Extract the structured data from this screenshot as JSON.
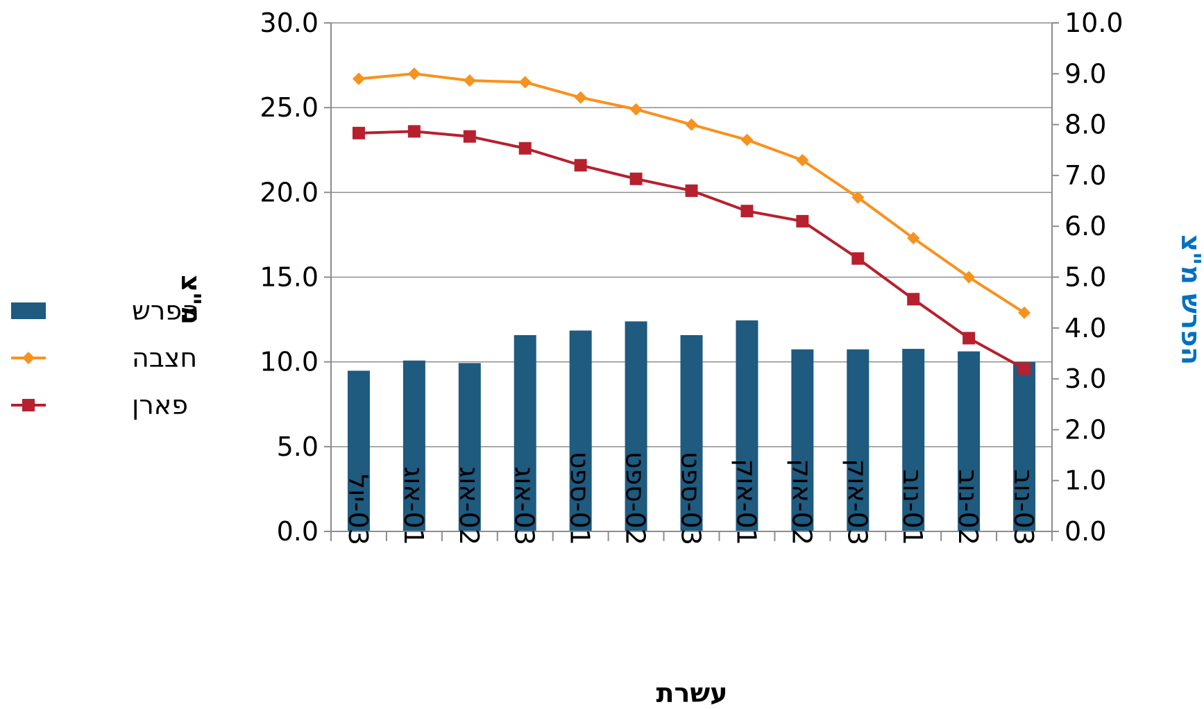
{
  "chart_data": {
    "type": "bar",
    "categories": [
      "03-יול",
      "01-אוג",
      "02-אוג",
      "03-אוג",
      "01-ספט",
      "02-ספט",
      "03-ספט",
      "01-אוק",
      "02-אוק",
      "03-אוק",
      "01-נוב",
      "02-נוב",
      "03-נוב"
    ],
    "xlabel": "עשרת",
    "ylabel_left": "מ\"צ",
    "ylabel_right": "הפרש  מ\"צ",
    "ylim_left": [
      0,
      30
    ],
    "ylim_right": [
      0,
      10
    ],
    "yticks_left": [
      "0.0",
      "5.0",
      "10.0",
      "15.0",
      "20.0",
      "25.0",
      "30.0"
    ],
    "yticks_right": [
      "0.0",
      "1.0",
      "2.0",
      "3.0",
      "4.0",
      "5.0",
      "6.0",
      "7.0",
      "8.0",
      "9.0",
      "10.0"
    ],
    "grid": true,
    "legend_position": "left",
    "series": [
      {
        "name": "הפרש",
        "type": "bar",
        "axis": "right",
        "color": "#1f5a7f",
        "values": [
          3.16,
          3.36,
          3.31,
          3.86,
          3.95,
          4.13,
          3.86,
          4.15,
          3.58,
          3.58,
          3.59,
          3.54,
          3.33
        ]
      },
      {
        "name": "חצבה",
        "type": "line",
        "axis": "left",
        "color": "#f7921e",
        "marker": "diamond",
        "values": [
          26.7,
          27.0,
          26.6,
          26.5,
          25.6,
          24.9,
          24.0,
          23.1,
          21.9,
          19.7,
          17.3,
          15.0,
          12.9
        ]
      },
      {
        "name": "פארן",
        "type": "line",
        "axis": "left",
        "color": "#b7202e",
        "marker": "square",
        "values": [
          23.5,
          23.6,
          23.3,
          22.6,
          21.6,
          20.8,
          20.1,
          18.9,
          18.3,
          16.1,
          13.7,
          11.4,
          9.6
        ]
      }
    ]
  }
}
